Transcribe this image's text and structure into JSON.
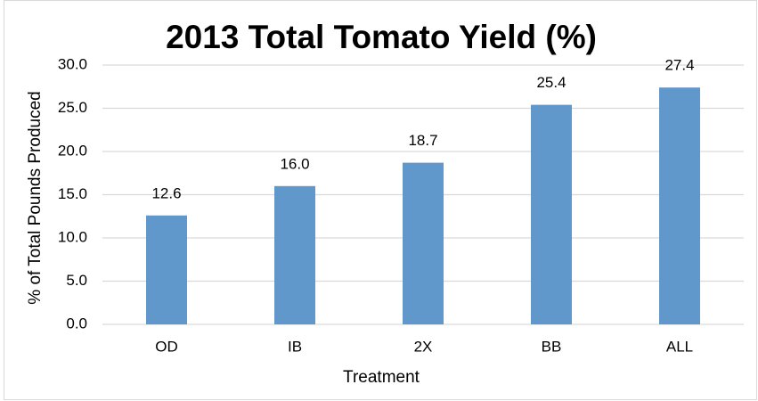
{
  "chart_data": {
    "type": "bar",
    "title": "2013 Total Tomato Yield (%)",
    "x_label": "Treatment",
    "y_label": "% of Total Pounds Produced",
    "categories": [
      "OD",
      "IB",
      "2X",
      "BB",
      "ALL"
    ],
    "values": [
      12.6,
      16.0,
      18.7,
      25.4,
      27.4
    ],
    "value_labels": [
      "12.6",
      "16.0",
      "18.7",
      "25.4",
      "27.4"
    ],
    "color": "#6198cc",
    "ylim": [
      0,
      30
    ],
    "yticks": [
      {
        "value": 0,
        "label": "0.0"
      },
      {
        "value": 5,
        "label": "5.0"
      },
      {
        "value": 10,
        "label": "10.0"
      },
      {
        "value": 15,
        "label": "15.0"
      },
      {
        "value": 20,
        "label": "20.0"
      },
      {
        "value": 25,
        "label": "25.0"
      },
      {
        "value": 30,
        "label": "30.0"
      }
    ],
    "grid": true
  }
}
